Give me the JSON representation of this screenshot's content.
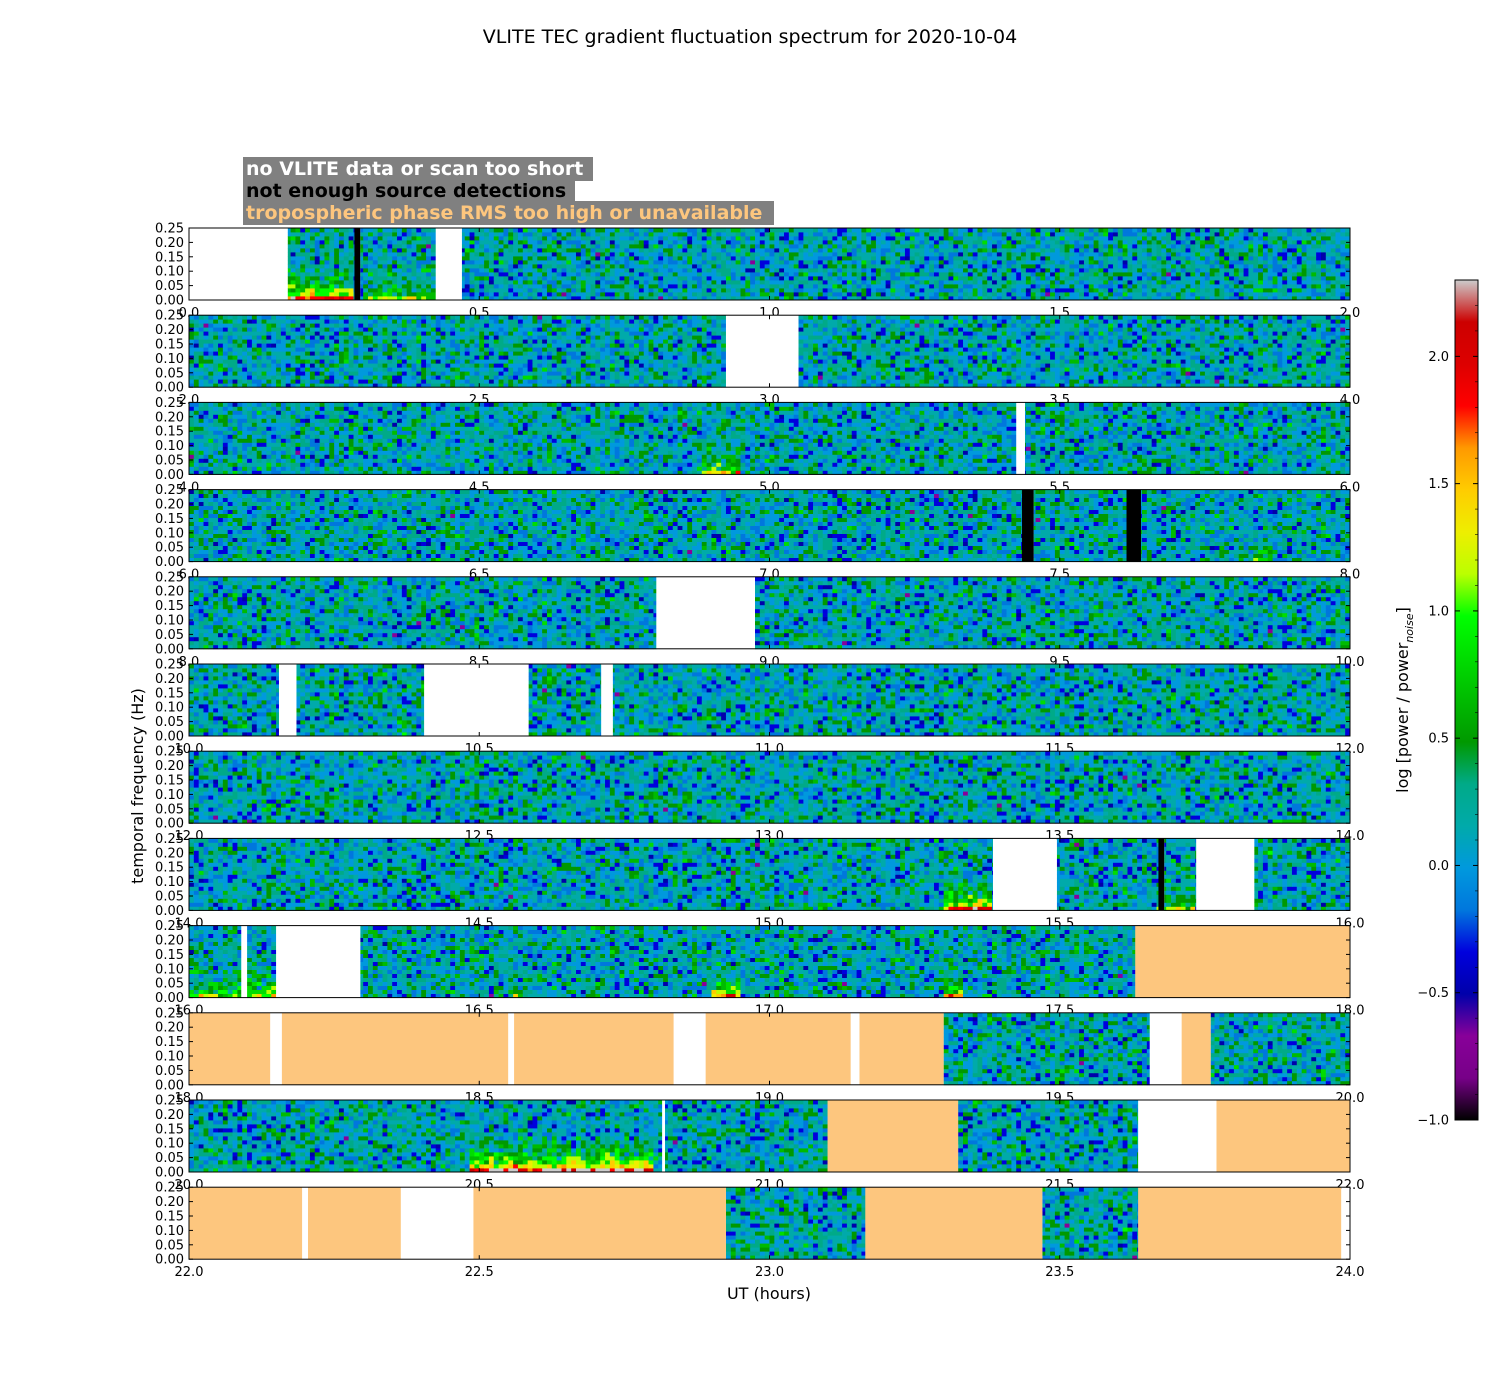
{
  "chart_data": {
    "type": "heatmap",
    "title": "VLITE TEC gradient fluctuation spectrum for 2020-10-04",
    "xlabel": "UT (hours)",
    "ylabel": "temporal frequency (Hz)",
    "ylim": [
      0,
      0.25
    ],
    "yticks": [
      "0.00",
      "0.05",
      "0.10",
      "0.15",
      "0.20",
      "0.25"
    ],
    "colorbar": {
      "label_main": "log [power / power",
      "label_sub": "noise",
      "label_end": "]",
      "range": [
        -1.0,
        2.3
      ],
      "ticks": [
        "−1.0",
        "−0.5",
        "0.0",
        "0.5",
        "1.0",
        "1.5",
        "2.0"
      ],
      "tick_values": [
        -1.0,
        -0.5,
        0.0,
        0.5,
        1.0,
        1.5,
        2.0
      ]
    },
    "legend": [
      {
        "label": "no VLITE data or scan too short",
        "color": "#ffffff",
        "state": "white"
      },
      {
        "label": "not enough source detections",
        "color": "#000000",
        "state": "black"
      },
      {
        "label": "tropospheric phase RMS too high or unavailable",
        "color": "#fdc67e",
        "state": "orange"
      }
    ],
    "panels": [
      {
        "start": 0,
        "end": 2,
        "xticks": [
          "0.0",
          "0.5",
          "1.0",
          "1.5",
          "2.0"
        ],
        "segments": [
          [
            0,
            0.17,
            "white"
          ],
          [
            0.17,
            0.285,
            "data"
          ],
          [
            0.285,
            0.295,
            "black"
          ],
          [
            0.295,
            0.425,
            "data"
          ],
          [
            0.425,
            0.47,
            "white"
          ],
          [
            0.47,
            2.0,
            "data"
          ]
        ],
        "hot": [
          [
            0.17,
            0.28,
            0.6
          ],
          [
            0.3,
            0.42,
            0.3
          ]
        ]
      },
      {
        "start": 2,
        "end": 4,
        "xticks": [
          "2.0",
          "2.5",
          "3.0",
          "3.5",
          "4.0"
        ],
        "segments": [
          [
            2.0,
            2.925,
            "data"
          ],
          [
            2.925,
            3.05,
            "white"
          ],
          [
            3.05,
            4.0,
            "data"
          ]
        ],
        "hot": []
      },
      {
        "start": 4,
        "end": 6,
        "xticks": [
          "4.0",
          "4.5",
          "5.0",
          "5.5",
          "6.0"
        ],
        "segments": [
          [
            4.0,
            5.425,
            "data"
          ],
          [
            5.425,
            5.44,
            "white"
          ],
          [
            5.44,
            6.0,
            "data"
          ]
        ],
        "hot": [
          [
            4.88,
            4.95,
            0.4
          ]
        ]
      },
      {
        "start": 6,
        "end": 8,
        "xticks": [
          "6.0",
          "6.5",
          "7.0",
          "7.5",
          "8.0"
        ],
        "segments": [
          [
            6.0,
            7.435,
            "data"
          ],
          [
            7.435,
            7.455,
            "black"
          ],
          [
            7.455,
            7.615,
            "data"
          ],
          [
            7.615,
            7.64,
            "black"
          ],
          [
            7.64,
            8.0,
            "data"
          ]
        ],
        "hot": [
          [
            7.83,
            7.87,
            0.3
          ]
        ]
      },
      {
        "start": 8,
        "end": 10,
        "xticks": [
          "8.0",
          "8.5",
          "9.0",
          "9.5",
          "10.0"
        ],
        "segments": [
          [
            8.0,
            8.805,
            "data"
          ],
          [
            8.805,
            8.975,
            "white"
          ],
          [
            8.975,
            10.0,
            "data"
          ]
        ],
        "hot": []
      },
      {
        "start": 10,
        "end": 12,
        "xticks": [
          "10.0",
          "10.5",
          "11.0",
          "11.5",
          "12.0"
        ],
        "segments": [
          [
            10.0,
            10.155,
            "data"
          ],
          [
            10.155,
            10.185,
            "white"
          ],
          [
            10.185,
            10.405,
            "data"
          ],
          [
            10.405,
            10.585,
            "white"
          ],
          [
            10.585,
            10.71,
            "data"
          ],
          [
            10.71,
            10.73,
            "white"
          ],
          [
            10.73,
            12.0,
            "data"
          ]
        ],
        "hot": []
      },
      {
        "start": 12,
        "end": 14,
        "xticks": [
          "12.0",
          "12.5",
          "13.0",
          "13.5",
          "14.0"
        ],
        "segments": [
          [
            12.0,
            14.0,
            "data"
          ]
        ],
        "hot": []
      },
      {
        "start": 14,
        "end": 16,
        "xticks": [
          "14.0",
          "14.5",
          "15.0",
          "15.5",
          "16.0"
        ],
        "segments": [
          [
            14.0,
            15.385,
            "data"
          ],
          [
            15.385,
            15.495,
            "white"
          ],
          [
            15.495,
            15.67,
            "data"
          ],
          [
            15.67,
            15.68,
            "black"
          ],
          [
            15.68,
            15.735,
            "data"
          ],
          [
            15.735,
            15.835,
            "white"
          ],
          [
            15.835,
            16.0,
            "data"
          ]
        ],
        "hot": [
          [
            15.3,
            15.38,
            0.6
          ],
          [
            15.67,
            15.73,
            0.3
          ]
        ]
      },
      {
        "start": 16,
        "end": 18,
        "xticks": [
          "16.0",
          "16.5",
          "17.0",
          "17.5",
          "18.0"
        ],
        "segments": [
          [
            16.0,
            16.09,
            "data"
          ],
          [
            16.09,
            16.1,
            "white"
          ],
          [
            16.1,
            16.15,
            "data"
          ],
          [
            16.15,
            16.295,
            "white"
          ],
          [
            16.295,
            17.63,
            "data"
          ],
          [
            17.63,
            18.0,
            "orange"
          ]
        ],
        "hot": [
          [
            16.0,
            16.09,
            0.3
          ],
          [
            16.1,
            16.15,
            0.4
          ],
          [
            16.55,
            16.57,
            0.3
          ],
          [
            16.9,
            16.95,
            0.5
          ],
          [
            17.3,
            17.33,
            0.5
          ]
        ]
      },
      {
        "start": 18,
        "end": 20,
        "xticks": [
          "18.0",
          "18.5",
          "19.0",
          "19.5",
          "20.0"
        ],
        "segments": [
          [
            18.0,
            18.14,
            "orange"
          ],
          [
            18.14,
            18.16,
            "white"
          ],
          [
            18.16,
            18.55,
            "orange"
          ],
          [
            18.55,
            18.56,
            "white"
          ],
          [
            18.56,
            18.835,
            "orange"
          ],
          [
            18.835,
            18.89,
            "white"
          ],
          [
            18.89,
            19.14,
            "orange"
          ],
          [
            19.14,
            19.155,
            "white"
          ],
          [
            19.155,
            19.3,
            "orange"
          ],
          [
            19.3,
            19.655,
            "data"
          ],
          [
            19.655,
            19.71,
            "white"
          ],
          [
            19.71,
            19.76,
            "orange"
          ],
          [
            19.76,
            20.0,
            "data"
          ]
        ],
        "hot": []
      },
      {
        "start": 20,
        "end": 22,
        "xticks": [
          "20.0",
          "20.5",
          "21.0",
          "21.5",
          "22.0"
        ],
        "segments": [
          [
            20.0,
            20.815,
            "data"
          ],
          [
            20.815,
            20.82,
            "white"
          ],
          [
            20.82,
            21.1,
            "data"
          ],
          [
            21.1,
            21.325,
            "orange"
          ],
          [
            21.325,
            21.635,
            "data"
          ],
          [
            21.635,
            21.77,
            "white"
          ],
          [
            21.77,
            22.0,
            "orange"
          ]
        ],
        "hot": [
          [
            20.48,
            20.8,
            0.7
          ]
        ]
      },
      {
        "start": 22,
        "end": 24,
        "xticks": [
          "22.0",
          "22.5",
          "23.0",
          "23.5",
          "24.0"
        ],
        "segments": [
          [
            22.0,
            22.195,
            "orange"
          ],
          [
            22.195,
            22.205,
            "white"
          ],
          [
            22.205,
            22.365,
            "orange"
          ],
          [
            22.365,
            22.49,
            "white"
          ],
          [
            22.49,
            22.925,
            "orange"
          ],
          [
            22.925,
            23.165,
            "data"
          ],
          [
            23.165,
            23.47,
            "orange"
          ],
          [
            23.47,
            23.635,
            "data"
          ],
          [
            23.635,
            23.985,
            "orange"
          ],
          [
            23.985,
            24.0,
            "white"
          ]
        ],
        "hot": []
      }
    ]
  }
}
